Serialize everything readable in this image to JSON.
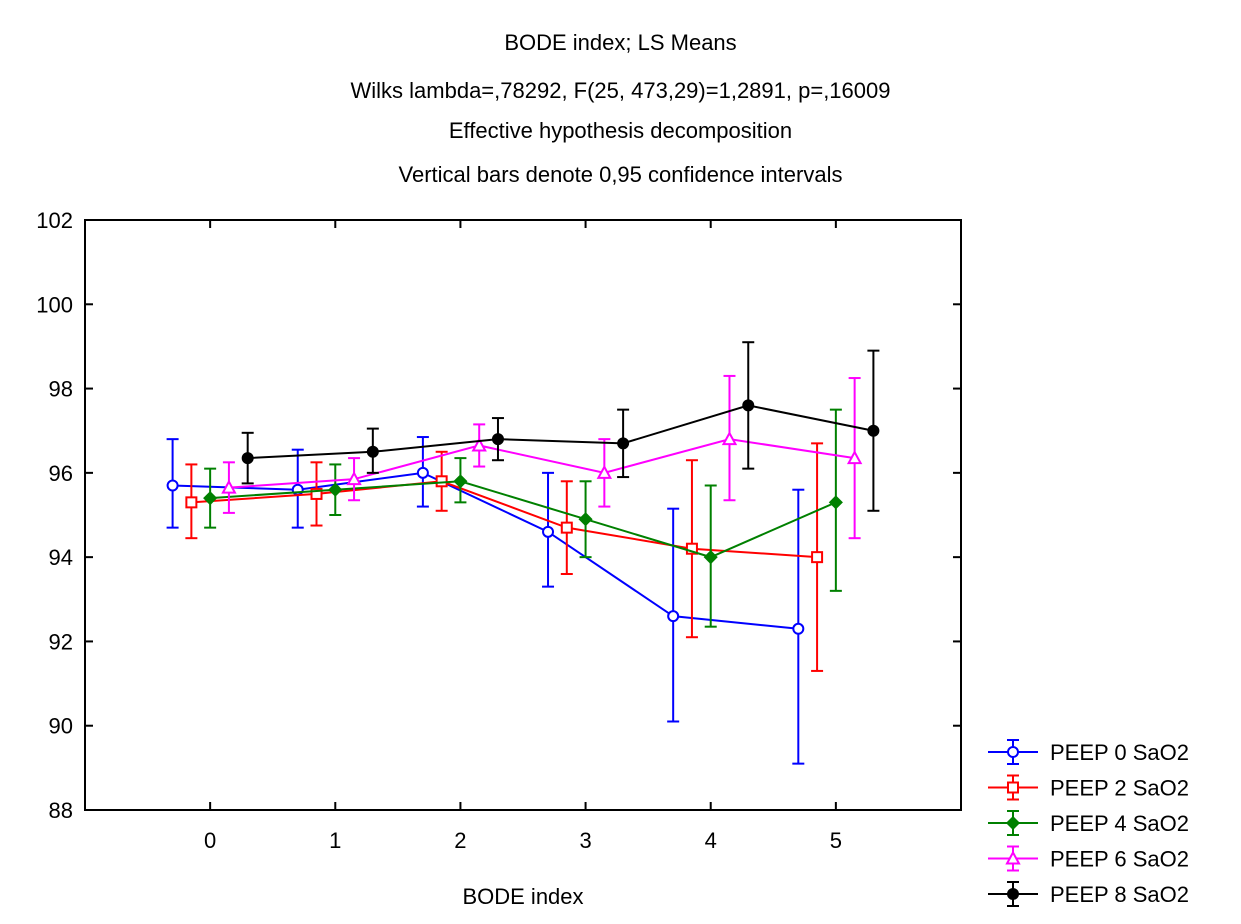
{
  "chart_data": {
    "type": "line",
    "title_lines": [
      "BODE index; LS Means",
      "Wilks lambda=,78292, F(25, 473,29)=1,2891, p=,16009",
      "Effective hypothesis decomposition",
      "Vertical bars denote 0,95 confidence intervals"
    ],
    "xlabel": "BODE index",
    "ylabel": "",
    "categories": [
      "0",
      "1",
      "2",
      "3",
      "4",
      "5"
    ],
    "yticks": [
      "88",
      "90",
      "92",
      "94",
      "96",
      "98",
      "100",
      "102"
    ],
    "ylim": [
      88,
      102
    ],
    "xlim": [
      -1,
      6
    ],
    "grid": false,
    "legend_position": "bottom-right",
    "series": [
      {
        "name": "PEEP 0 SaO2",
        "color": "#0000ff",
        "marker": "circle-open",
        "offset": -0.3,
        "values": [
          95.7,
          95.6,
          96.0,
          94.6,
          92.6,
          92.3
        ],
        "ci_low": [
          94.7,
          94.7,
          95.2,
          93.3,
          90.1,
          89.1
        ],
        "ci_high": [
          96.8,
          96.55,
          96.85,
          96.0,
          95.15,
          95.6
        ]
      },
      {
        "name": "PEEP 2 SaO2",
        "color": "#ff0000",
        "marker": "square-open",
        "offset": -0.15,
        "values": [
          95.3,
          95.5,
          95.8,
          94.7,
          94.2,
          94.0
        ],
        "ci_low": [
          94.45,
          94.75,
          95.1,
          93.6,
          92.1,
          91.3
        ],
        "ci_high": [
          96.2,
          96.25,
          96.5,
          95.8,
          96.3,
          96.7
        ]
      },
      {
        "name": "PEEP 4 SaO2",
        "color": "#008000",
        "marker": "diamond-filled",
        "offset": 0.0,
        "values": [
          95.4,
          95.6,
          95.8,
          94.9,
          94.0,
          95.3
        ],
        "ci_low": [
          94.7,
          95.0,
          95.3,
          94.0,
          92.35,
          93.2
        ],
        "ci_high": [
          96.1,
          96.2,
          96.35,
          95.8,
          95.7,
          97.5
        ]
      },
      {
        "name": "PEEP 6 SaO2",
        "color": "#ff00ff",
        "marker": "triangle-open",
        "offset": 0.15,
        "values": [
          95.65,
          95.85,
          96.65,
          96.0,
          96.8,
          96.35
        ],
        "ci_low": [
          95.05,
          95.35,
          96.15,
          95.2,
          95.35,
          94.45
        ],
        "ci_high": [
          96.25,
          96.35,
          97.15,
          96.8,
          98.3,
          98.25
        ]
      },
      {
        "name": "PEEP 8 SaO2",
        "color": "#000000",
        "marker": "circle-filled",
        "offset": 0.3,
        "values": [
          96.35,
          96.5,
          96.8,
          96.7,
          97.6,
          97.0
        ],
        "ci_low": [
          95.75,
          96.0,
          96.3,
          95.9,
          96.1,
          95.1
        ],
        "ci_high": [
          96.95,
          97.05,
          97.3,
          97.5,
          99.1,
          98.9
        ]
      }
    ]
  }
}
